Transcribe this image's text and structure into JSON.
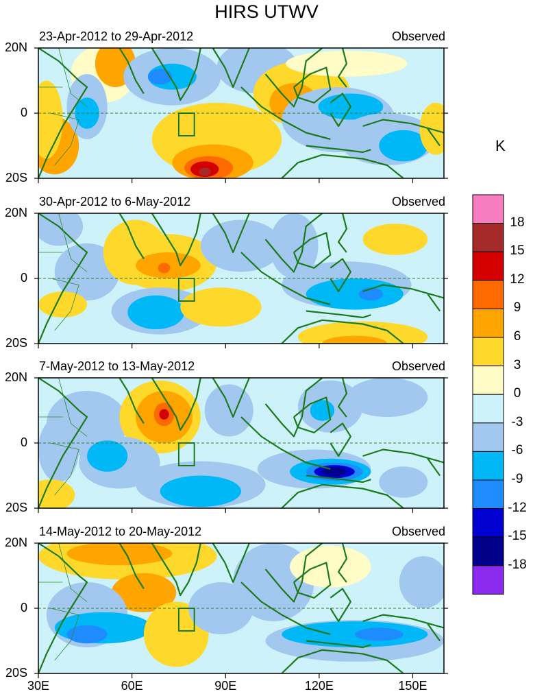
{
  "title": "HIRS UTWV",
  "unit": "K",
  "panels": [
    {
      "period": "23-Apr-2012 to 29-Apr-2012",
      "tag": "Observed"
    },
    {
      "period": "30-Apr-2012 to 6-May-2012",
      "tag": "Observed"
    },
    {
      "period": "7-May-2012 to 13-May-2012",
      "tag": "Observed"
    },
    {
      "period": "14-May-2012 to 20-May-2012",
      "tag": "Observed"
    }
  ],
  "y_ticks": [
    "20N",
    "0",
    "20S"
  ],
  "x_ticks": [
    "30E",
    "60E",
    "90E",
    "120E",
    "150E"
  ],
  "colorbar": {
    "labels": [
      "18",
      "15",
      "12",
      "9",
      "6",
      "3",
      "0",
      "-3",
      "-6",
      "-9",
      "-12",
      "-15",
      "-18"
    ],
    "colors": [
      "#f77cc0",
      "#a52a2a",
      "#d40000",
      "#ff6a00",
      "#ffa500",
      "#ffd82c",
      "#fffcc7",
      "#cdf2fa",
      "#a3c8f0",
      "#00b8f5",
      "#1e8cff",
      "#0000d0",
      "#00008b",
      "#8b2bf0"
    ]
  }
}
